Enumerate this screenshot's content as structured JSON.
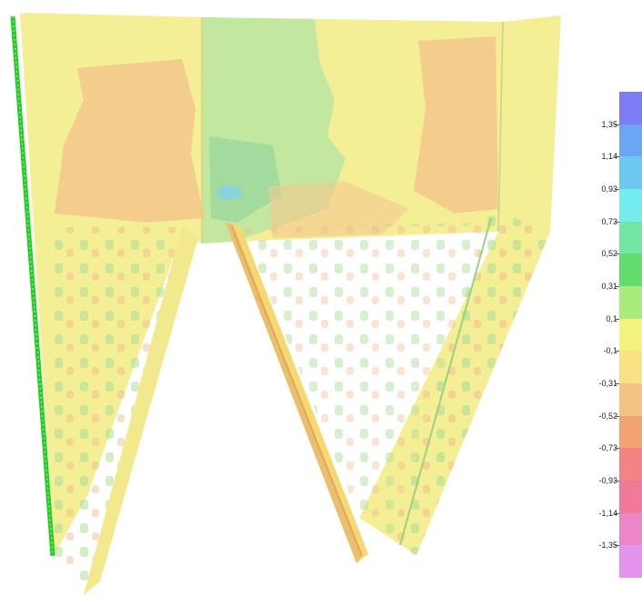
{
  "legend": {
    "labels": [
      "1,35",
      "1,14",
      "0,93",
      "0,73",
      "0,52",
      "0,31",
      "0,1",
      "-0,1",
      "-0,31",
      "-0,52",
      "-0,73",
      "-0,93",
      "-1,14",
      "-1,35"
    ],
    "band_colors": [
      "#7c7cf4",
      "#6aa6f4",
      "#6cc8f0",
      "#74ecf0",
      "#74e6a4",
      "#62dc6c",
      "#a8ec7c",
      "#f4f47c",
      "#f8e284",
      "#f4c484",
      "#f4a474",
      "#f48484",
      "#f07a98",
      "#ec86c8",
      "#e494ec"
    ]
  },
  "colors": {
    "base_yellow": "#f4ee94",
    "green_zone": "#bce6a0",
    "orange_zone": "#f4c48a",
    "support_green": "#22cc22"
  }
}
